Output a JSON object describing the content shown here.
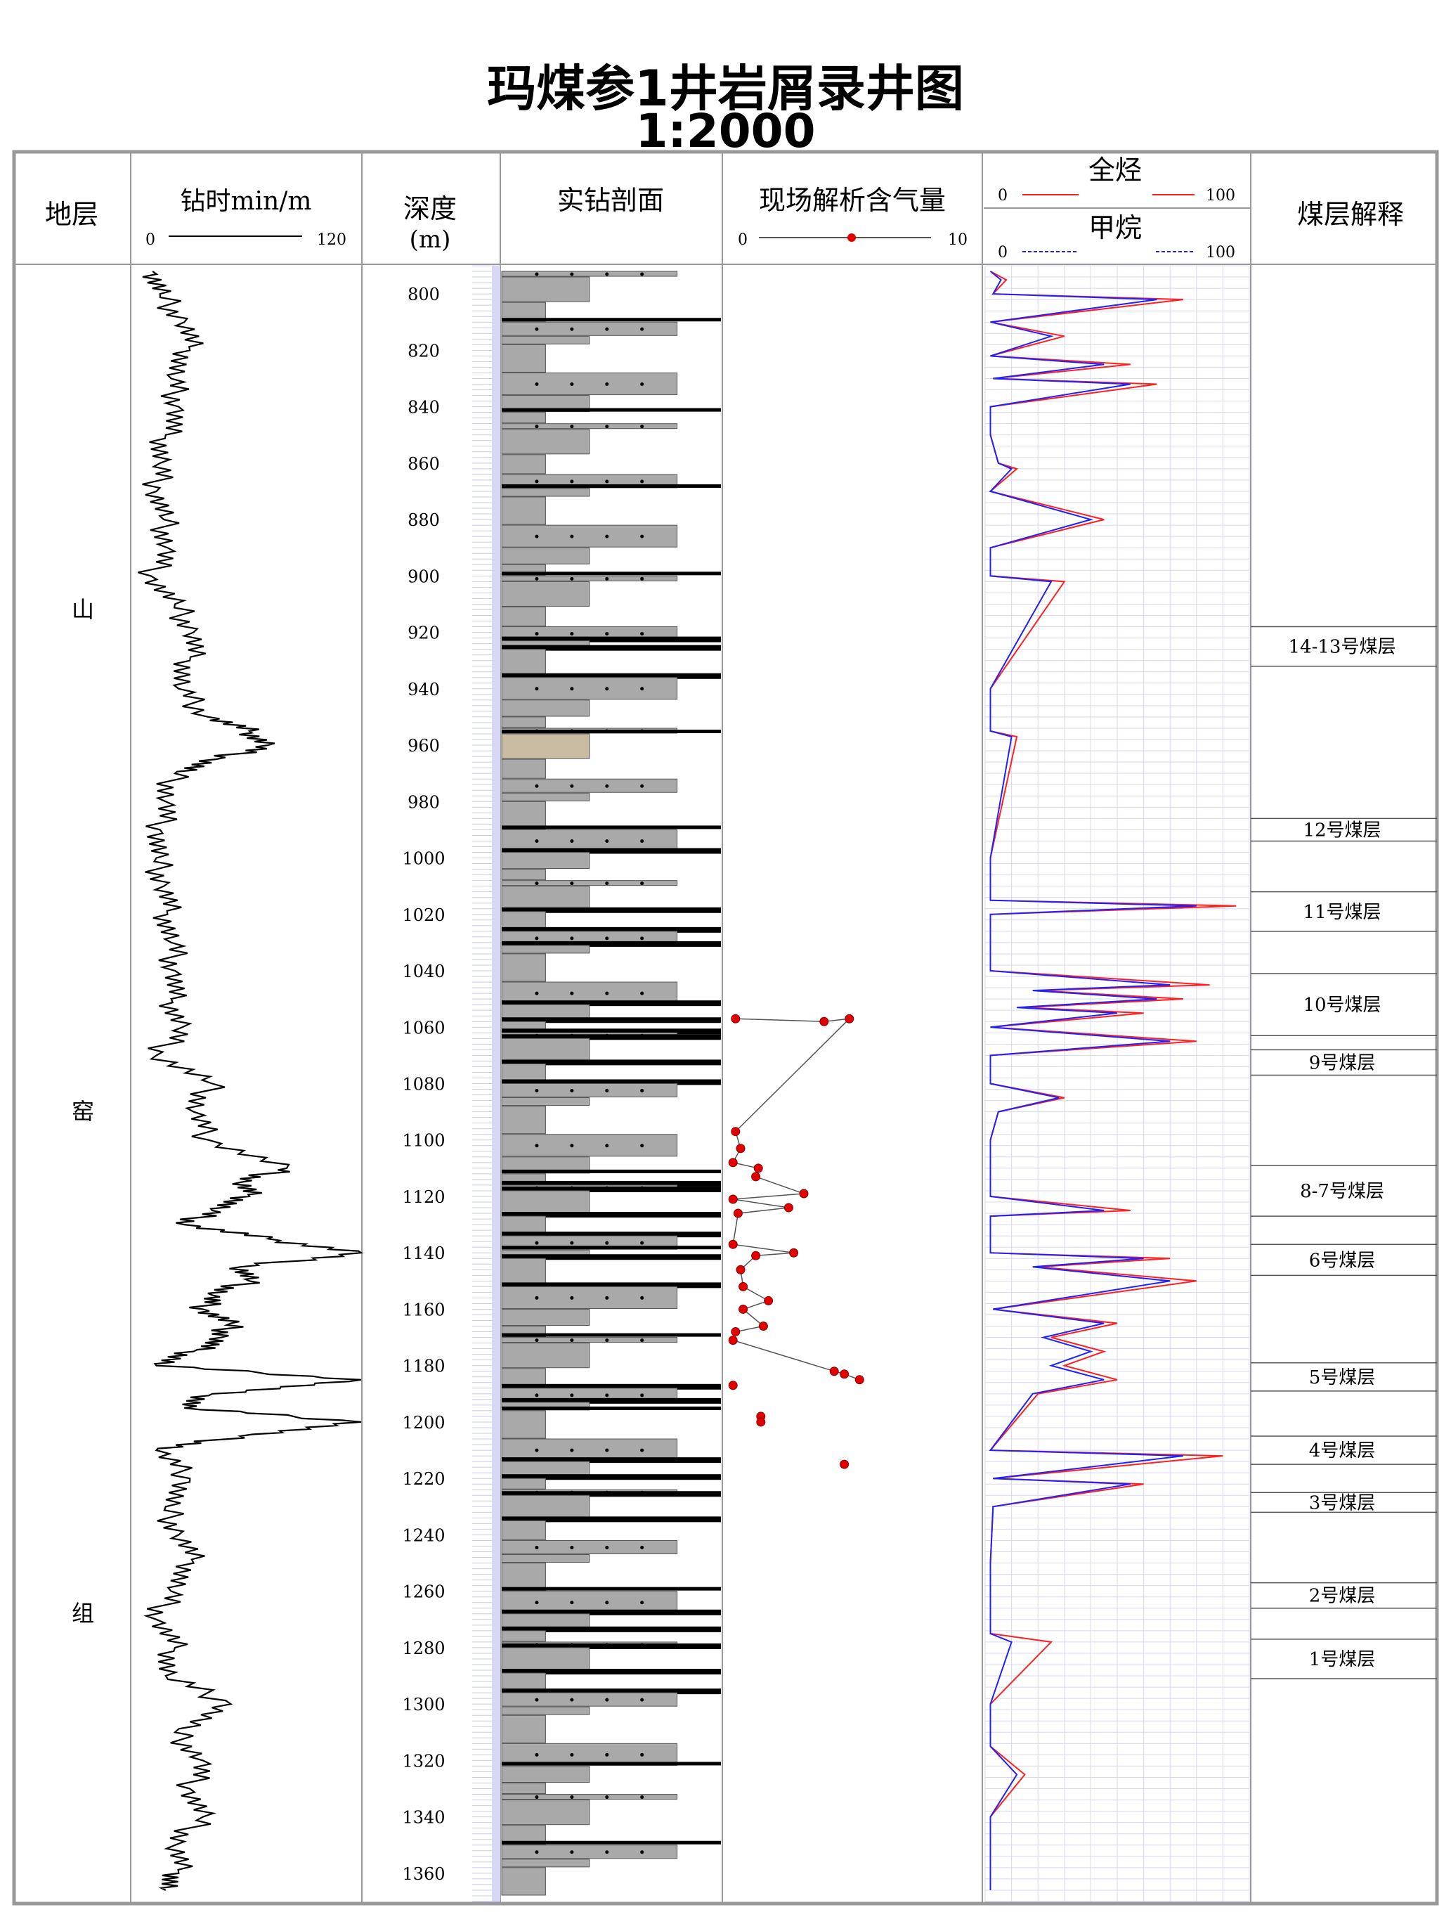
{
  "title": "玛煤参1井岩屑录井图",
  "scale": "1:2000",
  "headers": {
    "stratum": "地层",
    "drill_time": "钻时min/m",
    "drill_time_min": "0",
    "drill_time_max": "120",
    "depth": "深度",
    "depth_unit": "(m)",
    "lithology": "实钻剖面",
    "gas_content": "现场解析含气量",
    "gas_min": "0",
    "gas_max": "10",
    "total_hc": "全烃",
    "total_hc_min": "0",
    "total_hc_max": "100",
    "methane": "甲烷",
    "methane_min": "0",
    "methane_max": "100",
    "coal_interp": "煤层解释"
  },
  "stratum_chars": [
    "山",
    "窑",
    "组"
  ],
  "depth_ticks": [
    "800",
    "820",
    "840",
    "860",
    "880",
    "900",
    "920",
    "940",
    "960",
    "980",
    "1000",
    "1020",
    "1040",
    "1060",
    "1080",
    "1100",
    "1120",
    "1140",
    "1160",
    "1180",
    "1200",
    "1220",
    "1240",
    "1260",
    "1280",
    "1300",
    "1320",
    "1340",
    "1360"
  ],
  "coal_seams": [
    {
      "label": "14-13号煤层",
      "top": 918,
      "bottom": 932
    },
    {
      "label": "12号煤层",
      "top": 986,
      "bottom": 994
    },
    {
      "label": "11号煤层",
      "top": 1012,
      "bottom": 1026
    },
    {
      "label": "10号煤层",
      "top": 1041,
      "bottom": 1063
    },
    {
      "label": "9号煤层",
      "top": 1068,
      "bottom": 1077
    },
    {
      "label": "8-7号煤层",
      "top": 1109,
      "bottom": 1127
    },
    {
      "label": "6号煤层",
      "top": 1137,
      "bottom": 1148
    },
    {
      "label": "5号煤层",
      "top": 1179,
      "bottom": 1189
    },
    {
      "label": "4号煤层",
      "top": 1205,
      "bottom": 1215
    },
    {
      "label": "3号煤层",
      "top": 1225,
      "bottom": 1232
    },
    {
      "label": "2号煤层",
      "top": 1257,
      "bottom": 1266
    },
    {
      "label": "1号煤层",
      "top": 1277,
      "bottom": 1291
    }
  ],
  "colors": {
    "frame": "#999999",
    "sandstone": "#a9a9a9",
    "coal": "#000000",
    "tan_bed": "#c9bca3",
    "dark_mud": "#6f7877",
    "gas_point": "#e00000",
    "total_hc_line": "#ff2020",
    "methane_line": "#2020ff",
    "depth_grid": "#c8c8f0"
  },
  "chart_data": [
    {
      "type": "line",
      "name": "钻时",
      "xlabel": "钻时min/m",
      "xlim": [
        0,
        120
      ],
      "ylabel": "深度(m)",
      "ylim": [
        790,
        1370
      ],
      "depth": [
        792,
        800,
        810,
        820,
        830,
        840,
        850,
        860,
        870,
        880,
        890,
        900,
        910,
        920,
        930,
        940,
        950,
        955,
        960,
        965,
        970,
        980,
        990,
        1000,
        1010,
        1020,
        1030,
        1040,
        1050,
        1060,
        1070,
        1080,
        1090,
        1100,
        1110,
        1115,
        1120,
        1125,
        1130,
        1135,
        1140,
        1145,
        1150,
        1155,
        1160,
        1165,
        1170,
        1175,
        1180,
        1185,
        1190,
        1195,
        1200,
        1205,
        1210,
        1220,
        1230,
        1240,
        1250,
        1260,
        1270,
        1280,
        1290,
        1300,
        1310,
        1320,
        1330,
        1340,
        1350,
        1360,
        1366
      ],
      "values": [
        8,
        12,
        25,
        28,
        18,
        22,
        15,
        12,
        10,
        14,
        16,
        7,
        20,
        30,
        28,
        22,
        38,
        60,
        70,
        42,
        20,
        15,
        12,
        10,
        14,
        16,
        18,
        20,
        18,
        24,
        10,
        40,
        30,
        38,
        80,
        55,
        60,
        40,
        25,
        70,
        120,
        55,
        60,
        40,
        35,
        50,
        45,
        30,
        10,
        120,
        40,
        25,
        120,
        55,
        10,
        28,
        15,
        22,
        30,
        18,
        10,
        20,
        15,
        50,
        20,
        35,
        28,
        35,
        20,
        22,
        15
      ]
    },
    {
      "type": "scatter",
      "name": "现场解析含气量",
      "xlim": [
        0,
        10
      ],
      "points": [
        [
          1057,
          0.3
        ],
        [
          1058,
          3.8
        ],
        [
          1057,
          4.8
        ],
        [
          1097,
          0.3
        ],
        [
          1103,
          0.5
        ],
        [
          1108,
          0.2
        ],
        [
          1110,
          1.2
        ],
        [
          1113,
          1.1
        ],
        [
          1119,
          3.0
        ],
        [
          1121,
          0.2
        ],
        [
          1124,
          2.4
        ],
        [
          1126,
          0.4
        ],
        [
          1137,
          0.2
        ],
        [
          1140,
          2.6
        ],
        [
          1141,
          1.1
        ],
        [
          1146,
          0.5
        ],
        [
          1152,
          0.6
        ],
        [
          1157,
          1.6
        ],
        [
          1160,
          0.6
        ],
        [
          1166,
          1.4
        ],
        [
          1168,
          0.3
        ],
        [
          1171,
          0.2
        ],
        [
          1182,
          4.2
        ],
        [
          1183,
          4.6
        ],
        [
          1185,
          5.2
        ],
        [
          1187,
          0.2
        ],
        [
          1198,
          1.3
        ],
        [
          1200,
          1.3
        ],
        [
          1215,
          4.6
        ]
      ]
    },
    {
      "type": "line",
      "name": "全烃",
      "xlim": [
        0,
        100
      ],
      "depth": [
        792,
        795,
        800,
        802,
        810,
        815,
        822,
        825,
        830,
        832,
        840,
        850,
        860,
        862,
        870,
        880,
        890,
        900,
        902,
        940,
        955,
        957,
        1000,
        1015,
        1017,
        1020,
        1040,
        1045,
        1047,
        1050,
        1053,
        1055,
        1060,
        1065,
        1070,
        1080,
        1085,
        1090,
        1100,
        1120,
        1125,
        1127,
        1140,
        1142,
        1145,
        1150,
        1160,
        1165,
        1170,
        1175,
        1180,
        1185,
        1190,
        1210,
        1212,
        1220,
        1222,
        1230,
        1250,
        1275,
        1278,
        1300,
        1315,
        1325,
        1340,
        1366
      ],
      "values": [
        2,
        8,
        3,
        75,
        2,
        30,
        2,
        55,
        3,
        65,
        2,
        2,
        5,
        12,
        2,
        45,
        2,
        2,
        30,
        2,
        2,
        12,
        2,
        2,
        95,
        2,
        2,
        85,
        20,
        75,
        15,
        60,
        2,
        80,
        2,
        2,
        30,
        5,
        2,
        2,
        55,
        2,
        2,
        70,
        20,
        80,
        3,
        50,
        25,
        45,
        30,
        50,
        20,
        2,
        90,
        3,
        60,
        3,
        2,
        2,
        25,
        2,
        2,
        15,
        2,
        2
      ]
    },
    {
      "type": "line",
      "name": "甲烷",
      "xlim": [
        0,
        100
      ],
      "depth": [
        792,
        795,
        800,
        802,
        810,
        815,
        822,
        825,
        830,
        832,
        840,
        850,
        860,
        862,
        870,
        880,
        890,
        900,
        902,
        940,
        955,
        957,
        1000,
        1015,
        1017,
        1020,
        1040,
        1045,
        1047,
        1050,
        1053,
        1055,
        1060,
        1065,
        1070,
        1080,
        1085,
        1090,
        1100,
        1120,
        1125,
        1127,
        1140,
        1142,
        1145,
        1150,
        1160,
        1165,
        1170,
        1175,
        1180,
        1185,
        1190,
        1210,
        1212,
        1220,
        1222,
        1230,
        1250,
        1275,
        1278,
        1300,
        1315,
        1325,
        1340,
        1366
      ],
      "values": [
        2,
        6,
        3,
        65,
        2,
        25,
        2,
        45,
        3,
        55,
        2,
        2,
        5,
        10,
        2,
        40,
        2,
        2,
        25,
        2,
        2,
        10,
        2,
        2,
        80,
        2,
        2,
        70,
        18,
        65,
        12,
        50,
        2,
        70,
        2,
        2,
        28,
        5,
        2,
        2,
        45,
        2,
        2,
        60,
        18,
        70,
        3,
        45,
        22,
        40,
        25,
        45,
        18,
        2,
        75,
        3,
        55,
        3,
        2,
        2,
        10,
        2,
        2,
        12,
        2,
        2
      ]
    }
  ]
}
